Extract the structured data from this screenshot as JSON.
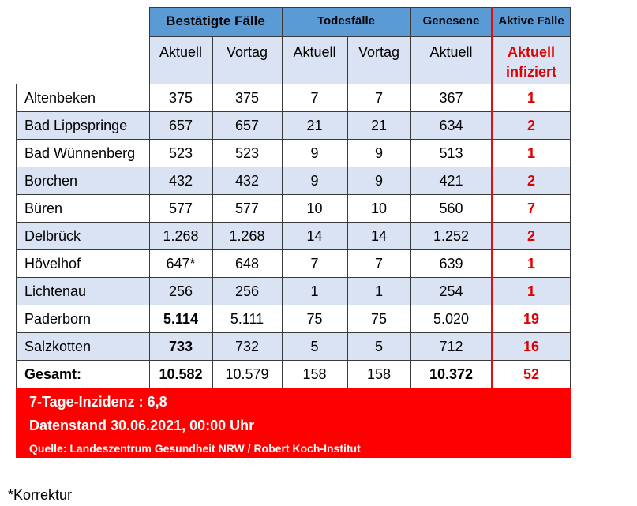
{
  "header": {
    "groups": {
      "bestaetigt": "Bestätigte Fälle",
      "todesfaelle": "Todesfälle",
      "genesene": "Genesene",
      "aktive": "Aktive Fälle"
    },
    "subheaders": {
      "aktuell": "Aktuell",
      "vortag": "Vortag",
      "aktuell_infiziert_1": "Aktuell",
      "aktuell_infiziert_2": "infiziert"
    }
  },
  "rows": [
    {
      "name": "Altenbeken",
      "best_akt": "375",
      "best_vor": "375",
      "tod_akt": "7",
      "tod_vor": "7",
      "gen": "367",
      "aktiv": "1"
    },
    {
      "name": "Bad Lippspringe",
      "best_akt": "657",
      "best_vor": "657",
      "tod_akt": "21",
      "tod_vor": "21",
      "gen": "634",
      "aktiv": "2"
    },
    {
      "name": "Bad Wünnenberg",
      "best_akt": "523",
      "best_vor": "523",
      "tod_akt": "9",
      "tod_vor": "9",
      "gen": "513",
      "aktiv": "1"
    },
    {
      "name": "Borchen",
      "best_akt": "432",
      "best_vor": "432",
      "tod_akt": "9",
      "tod_vor": "9",
      "gen": "421",
      "aktiv": "2"
    },
    {
      "name": "Büren",
      "best_akt": "577",
      "best_vor": "577",
      "tod_akt": "10",
      "tod_vor": "10",
      "gen": "560",
      "aktiv": "7"
    },
    {
      "name": "Delbrück",
      "best_akt": "1.268",
      "best_vor": "1.268",
      "tod_akt": "14",
      "tod_vor": "14",
      "gen": "1.252",
      "aktiv": "2"
    },
    {
      "name": "Hövelhof",
      "best_akt": "647*",
      "best_vor": "648",
      "tod_akt": "7",
      "tod_vor": "7",
      "gen": "639",
      "aktiv": "1"
    },
    {
      "name": "Lichtenau",
      "best_akt": "256",
      "best_vor": "256",
      "tod_akt": "1",
      "tod_vor": "1",
      "gen": "254",
      "aktiv": "1"
    },
    {
      "name": "Paderborn",
      "best_akt": "5.114",
      "best_vor": "5.111",
      "tod_akt": "75",
      "tod_vor": "75",
      "gen": "5.020",
      "aktiv": "19"
    },
    {
      "name": "Salzkotten",
      "best_akt": "733",
      "best_vor": "732",
      "tod_akt": "5",
      "tod_vor": "5",
      "gen": "712",
      "aktiv": "16"
    }
  ],
  "total": {
    "name": "Gesamt:",
    "best_akt": "10.582",
    "best_vor": "10.579",
    "tod_akt": "158",
    "tod_vor": "158",
    "gen": "10.372",
    "aktiv": "52"
  },
  "banner": {
    "inzidenz": "7-Tage-Inzidenz : 6,8",
    "datenstand": "Datenstand 30.06.2021, 00:00 Uhr",
    "quelle": "Quelle: Landeszentrum Gesundheit NRW / Robert Koch-Institut"
  },
  "footnote": "*Korrektur",
  "colors": {
    "header_blue": "#5b9bd5",
    "row_light": "#dae3f3",
    "accent_red": "#e00000",
    "banner_red": "#ff0000"
  }
}
